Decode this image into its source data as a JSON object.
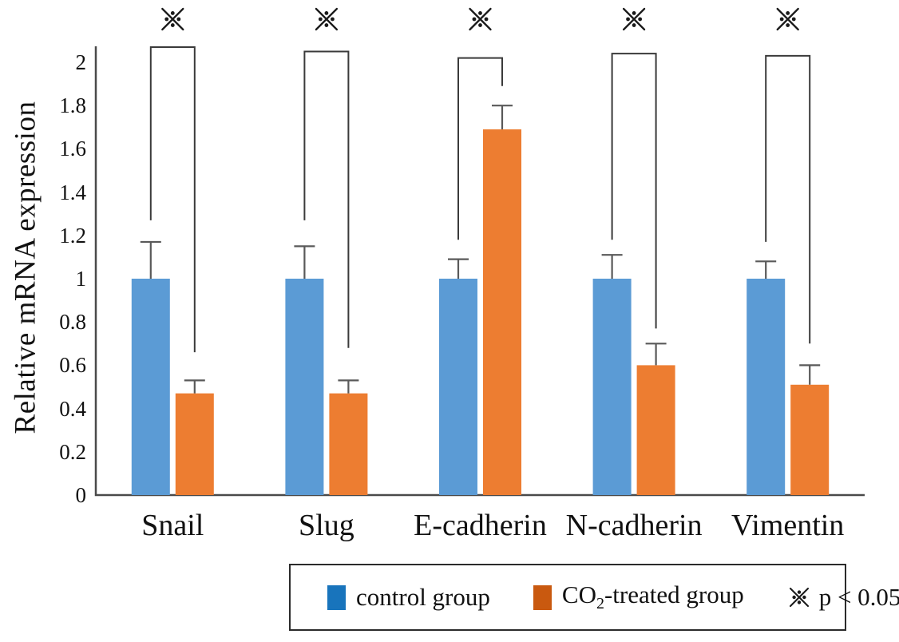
{
  "chart_data": {
    "type": "bar",
    "title": "",
    "xlabel": "",
    "ylabel": "Relative mRNA expression",
    "ylim": [
      0,
      2
    ],
    "grid": false,
    "legend_position": "bottom-boxed",
    "yticks": [
      {
        "v": 0,
        "label": "0"
      },
      {
        "v": 0.2,
        "label": "0.2"
      },
      {
        "v": 0.4,
        "label": "0.4"
      },
      {
        "v": 0.6,
        "label": "0.6"
      },
      {
        "v": 0.8,
        "label": "0.8"
      },
      {
        "v": 1,
        "label": "1"
      },
      {
        "v": 1.2,
        "label": "1.2"
      },
      {
        "v": 1.4,
        "label": "1.4"
      },
      {
        "v": 1.6,
        "label": "1.6"
      },
      {
        "v": 1.8,
        "label": "1.8"
      },
      {
        "v": 2,
        "label": "2"
      }
    ],
    "categories": [
      "Snail",
      "Slug",
      "E-cadherin",
      "N-cadherin",
      "Vimentin"
    ],
    "series": [
      {
        "name": "control group",
        "color": "#5B9BD5",
        "values": [
          1.0,
          1.0,
          1.0,
          1.0,
          1.0
        ],
        "errors_plus": [
          0.17,
          0.15,
          0.09,
          0.11,
          0.08
        ]
      },
      {
        "name": "CO2-treated group",
        "color": "#ED7D31",
        "values": [
          0.47,
          0.47,
          1.69,
          0.6,
          0.51
        ],
        "errors_plus": [
          0.06,
          0.06,
          0.11,
          0.1,
          0.09
        ]
      }
    ],
    "significance": {
      "symbol": "※",
      "note": "p < 0.05",
      "brackets": [
        {
          "category": "Snail",
          "top": 2.07,
          "left_end": 1.27,
          "right_end": 0.66
        },
        {
          "category": "Slug",
          "top": 2.05,
          "left_end": 1.27,
          "right_end": 0.68
        },
        {
          "category": "E-cadherin",
          "top": 2.02,
          "left_end": 1.18,
          "right_end": 1.89
        },
        {
          "category": "N-cadherin",
          "top": 2.04,
          "left_end": 1.18,
          "right_end": 0.77
        },
        {
          "category": "Vimentin",
          "top": 2.03,
          "left_end": 1.17,
          "right_end": 0.7
        }
      ]
    },
    "legend": {
      "control": {
        "label": "control group",
        "swatch_color": "#1874BC"
      },
      "treated": {
        "label_pre": "CO",
        "label_sub": "2",
        "label_post": "-treated group",
        "swatch_color": "#C9590F"
      },
      "significance_note": "p < 0.05"
    },
    "colors": {
      "axis": "#4a4a4a",
      "error_bar": "#595959",
      "bracket": "#3a3a3a",
      "marker": "#1a1a1a"
    }
  }
}
